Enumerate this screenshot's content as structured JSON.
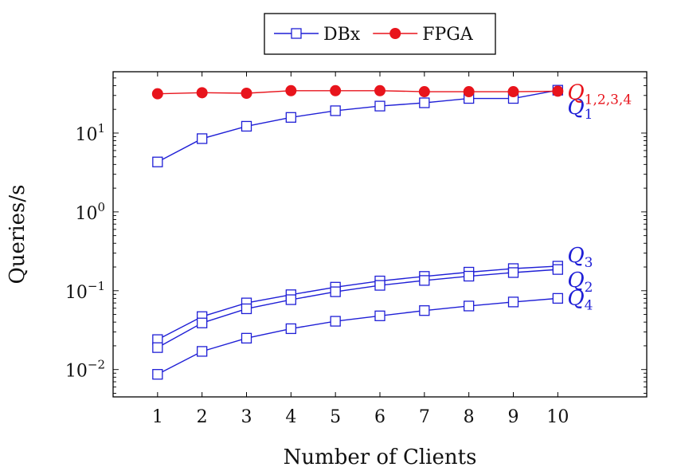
{
  "chart_data": {
    "type": "line",
    "xlabel": "Number of Clients",
    "ylabel": "Queries/s",
    "x": [
      1,
      2,
      3,
      4,
      5,
      6,
      7,
      8,
      9,
      10
    ],
    "xlim": [
      0,
      12
    ],
    "ylim": [
      0.0045,
      60
    ],
    "yscale": "log",
    "y_ticks": [
      {
        "base": "10",
        "exp": "1"
      },
      {
        "base": "10",
        "exp": "0"
      },
      {
        "base": "10",
        "exp": "−1"
      },
      {
        "base": "10",
        "exp": "−2"
      }
    ],
    "grid": false,
    "legend_position": "top-center",
    "legend": [
      {
        "label": "DBx",
        "color": "#1f1fd6",
        "marker": "square"
      },
      {
        "label": "FPGA",
        "color": "#e8141c",
        "marker": "circle"
      }
    ],
    "series": [
      {
        "system": "FPGA",
        "label": {
          "base": "Q",
          "sub": "1,2,3,4"
        },
        "color": "#e8141c",
        "marker": "circle",
        "values": [
          31.5,
          32.5,
          32.0,
          34.5,
          34.5,
          34.5,
          33.5,
          33.5,
          33.5,
          34.0
        ]
      },
      {
        "system": "DBx",
        "label": {
          "base": "Q",
          "sub": "1"
        },
        "color": "#1f1fd6",
        "marker": "square",
        "values": [
          4.3,
          8.5,
          12.2,
          15.8,
          19.2,
          22.0,
          24.2,
          27.5,
          27.5,
          35.0
        ]
      },
      {
        "system": "DBx",
        "label": {
          "base": "Q",
          "sub": "3"
        },
        "color": "#1f1fd6",
        "marker": "square",
        "values": [
          0.024,
          0.047,
          0.07,
          0.089,
          0.111,
          0.133,
          0.152,
          0.172,
          0.191,
          0.205
        ]
      },
      {
        "system": "DBx",
        "label": {
          "base": "Q",
          "sub": "2"
        },
        "color": "#1f1fd6",
        "marker": "square",
        "values": [
          0.019,
          0.039,
          0.059,
          0.077,
          0.097,
          0.117,
          0.135,
          0.153,
          0.17,
          0.186
        ]
      },
      {
        "system": "DBx",
        "label": {
          "base": "Q",
          "sub": "4"
        },
        "color": "#1f1fd6",
        "marker": "square",
        "values": [
          0.0087,
          0.017,
          0.025,
          0.033,
          0.041,
          0.048,
          0.056,
          0.064,
          0.072,
          0.08
        ]
      }
    ]
  }
}
